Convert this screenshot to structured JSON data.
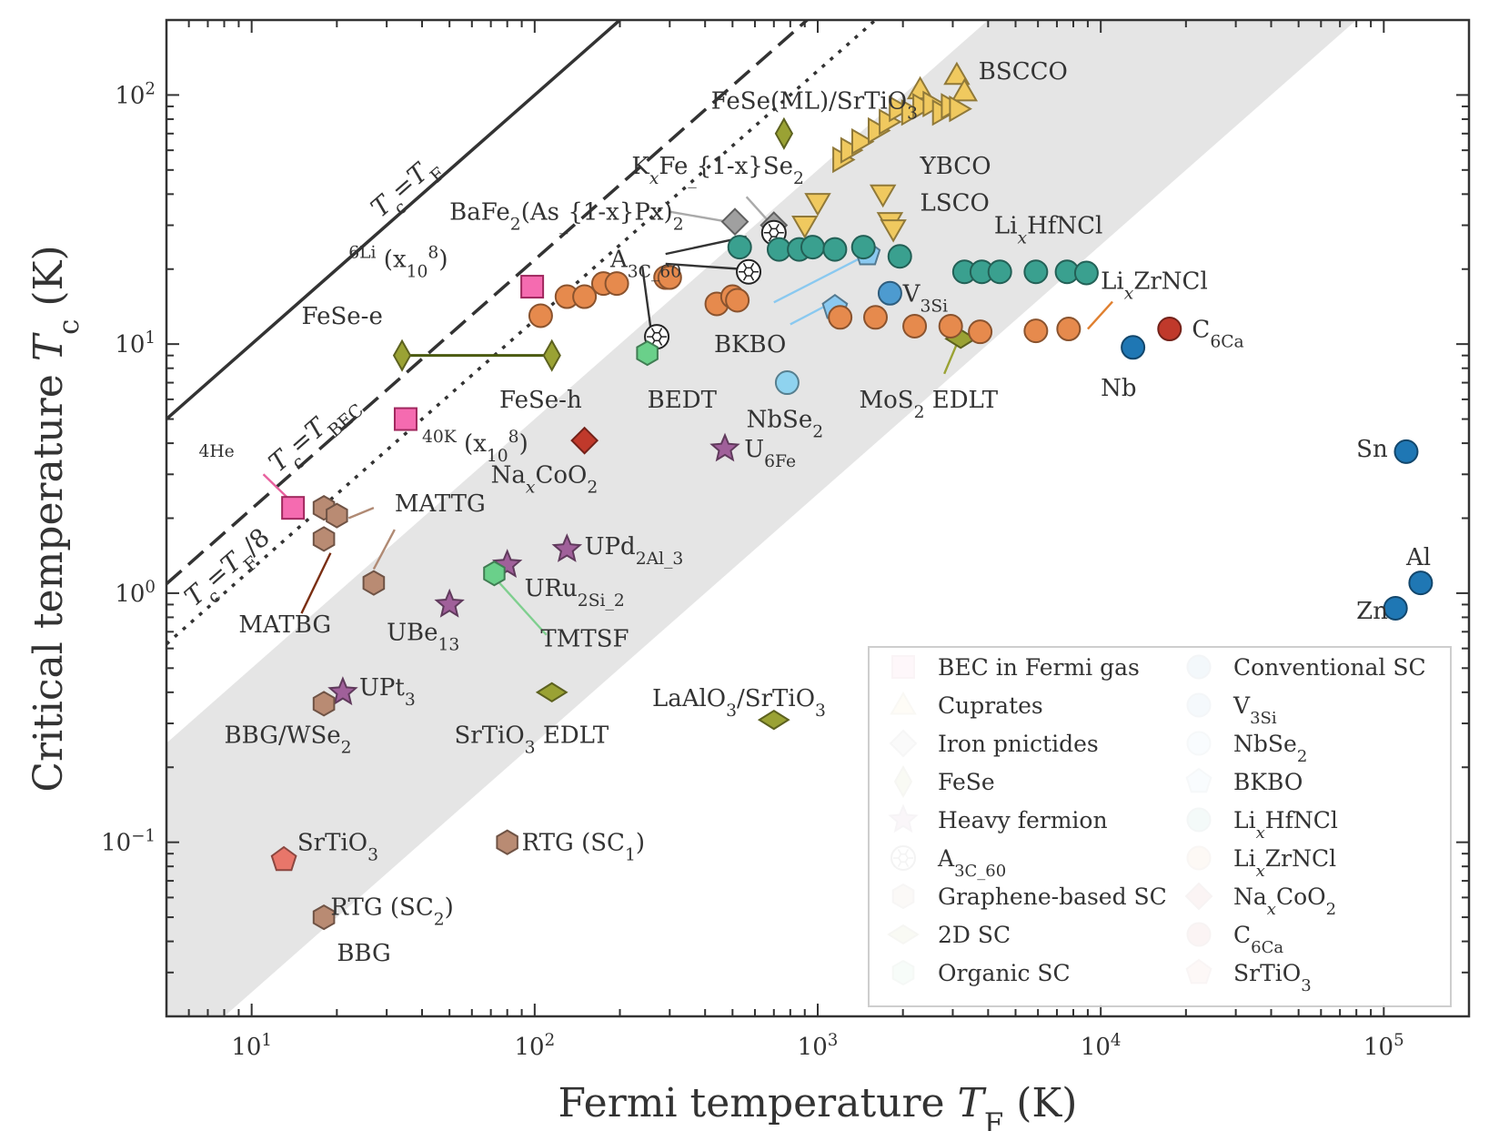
{
  "chart_data": {
    "type": "scatter",
    "xscale": "log",
    "yscale": "log",
    "xlim": [
      5,
      200000
    ],
    "ylim": [
      0.02,
      200
    ],
    "xlabel": "Fermi temperature T_F (K)",
    "ylabel": "Critical temperature T_c (K)",
    "x_ticks": [
      10,
      100,
      1000,
      10000,
      100000
    ],
    "x_tick_labels": [
      "10^1",
      "10^2",
      "10^3",
      "10^4",
      "10^5"
    ],
    "y_ticks": [
      0.1,
      1,
      10,
      100
    ],
    "y_tick_labels": [
      "10^-1",
      "10^0",
      "10^1",
      "10^2"
    ],
    "grid": false,
    "legend_position": "lower-right",
    "reference_lines": [
      {
        "name": "Tc=TF",
        "ratio": 1,
        "style": "solid"
      },
      {
        "name": "Tc=TBEC",
        "ratio": 0.218,
        "style": "dashed"
      },
      {
        "name": "Tc=TF/8",
        "ratio": 0.125,
        "style": "dotted"
      }
    ],
    "shaded_band": {
      "ratio_low": 0.0025,
      "ratio_high": 0.05
    },
    "series": [
      {
        "name": "BEC in Fermi gas",
        "marker": "square",
        "color": "#f56bb0",
        "x": [
          98,
          35,
          14
        ],
        "y": [
          17,
          5,
          2.2
        ]
      },
      {
        "name": "Cuprates",
        "marker": "triangle-up",
        "color": "#f0c95f",
        "x": [
          2300,
          3100,
          3300
        ],
        "y": [
          105,
          120,
          103
        ]
      },
      {
        "name": "Cuprates (YBCO, right-pointing)",
        "marker": "triangle-right",
        "color": "#f0c95f",
        "x": [
          1200,
          1280,
          1400,
          1600,
          1750,
          1900,
          2100,
          2300,
          2500,
          2700,
          2900,
          3100
        ],
        "y": [
          55,
          60,
          65,
          72,
          78,
          88,
          85,
          90,
          92,
          85,
          90,
          88
        ]
      },
      {
        "name": "Cuprates (LSCO, down-pointing)",
        "marker": "triangle-down",
        "color": "#f0c95f",
        "x": [
          900,
          1000,
          1700,
          1800,
          1850
        ],
        "y": [
          30,
          37,
          40,
          31,
          29
        ]
      },
      {
        "name": "Iron pnictides",
        "marker": "diamond",
        "color": "#a0a0a0",
        "x": [
          510,
          700
        ],
        "y": [
          31,
          30
        ]
      },
      {
        "name": "FeSe",
        "marker": "thin-diamond",
        "color": "#9aa234",
        "x": [
          34,
          115,
          760
        ],
        "y": [
          9,
          9,
          70
        ]
      },
      {
        "name": "Heavy fermion",
        "marker": "star",
        "color": "#a0609a",
        "x": [
          470,
          130,
          80,
          50,
          21
        ],
        "y": [
          3.8,
          1.5,
          1.3,
          0.9,
          0.4
        ]
      },
      {
        "name": "A3C60",
        "marker": "buckyball",
        "color": "#ffffff",
        "x": [
          700,
          570,
          270
        ],
        "y": [
          28,
          19.5,
          10.7
        ]
      },
      {
        "name": "Graphene-based SC",
        "marker": "hexagon",
        "color": "#b98b73",
        "x": [
          18,
          20,
          18,
          27,
          18,
          18,
          80
        ],
        "y": [
          2.2,
          2.05,
          1.65,
          1.1,
          0.36,
          0.05,
          0.1
        ]
      },
      {
        "name": "2D SC",
        "marker": "diamond-wide",
        "color": "#9aa234",
        "x": [
          3200,
          115,
          700
        ],
        "y": [
          10.5,
          0.4,
          0.31
        ]
      },
      {
        "name": "Organic SC",
        "marker": "hexagon",
        "color": "#6ad08a",
        "x": [
          250,
          72
        ],
        "y": [
          9.2,
          1.2
        ]
      },
      {
        "name": "Conventional SC",
        "marker": "circle",
        "color": "#1f77b4",
        "x": [
          13000,
          120000,
          135000,
          110000
        ],
        "y": [
          9.7,
          3.7,
          1.1,
          0.87
        ]
      },
      {
        "name": "V3Si",
        "marker": "circle",
        "color": "#4d9bd0",
        "x": [
          1800
        ],
        "y": [
          16
        ]
      },
      {
        "name": "NbSe2",
        "marker": "circle",
        "color": "#8fd3ef",
        "x": [
          780
        ],
        "y": [
          7
        ]
      },
      {
        "name": "BKBO",
        "marker": "pentagon",
        "color": "#8ac9f0",
        "x": [
          1500,
          1150
        ],
        "y": [
          23,
          14
        ]
      },
      {
        "name": "LixHfNCl",
        "marker": "circle",
        "color": "#3aa08f",
        "x": [
          530,
          730,
          860,
          960,
          1150,
          1450,
          1950,
          3300,
          3800,
          4400,
          5900,
          7600,
          8900
        ],
        "y": [
          24.5,
          24,
          24,
          24.5,
          24,
          24.5,
          22.5,
          19.5,
          19.5,
          19.5,
          19.5,
          19.5,
          19.3
        ]
      },
      {
        "name": "LixZrNCl",
        "marker": "circle",
        "color": "#e68a4d",
        "x": [
          105,
          130,
          150,
          175,
          195,
          290,
          300,
          440,
          500,
          520,
          1200,
          1600,
          2200,
          2950,
          3750,
          5900,
          7700
        ],
        "y": [
          13,
          15.5,
          15.5,
          17.5,
          17.5,
          18.5,
          18.5,
          14.5,
          15.5,
          15,
          12.8,
          12.8,
          11.8,
          11.8,
          11.2,
          11.3,
          11.5
        ]
      },
      {
        "name": "NaxCoO2",
        "marker": "diamond",
        "color": "#c0392b",
        "x": [
          150
        ],
        "y": [
          4.1
        ]
      },
      {
        "name": "C6Ca",
        "marker": "circle",
        "color": "#c0392b",
        "x": [
          17500
        ],
        "y": [
          11.5
        ]
      },
      {
        "name": "SrTiO3",
        "marker": "pentagon",
        "color": "#e8766a",
        "x": [
          13
        ],
        "y": [
          0.085
        ]
      }
    ],
    "annotations": [
      {
        "text": "BSCCO",
        "x": 3700,
        "y": 125
      },
      {
        "text": "FeSe(ML)/SrTiO3",
        "x": 420,
        "y": 95
      },
      {
        "text": "YBCO",
        "x": 2300,
        "y": 52
      },
      {
        "text": "KxFe1-xSe2",
        "x": 220,
        "y": 52
      },
      {
        "text": "BaFe2(As1-xPx)2",
        "x": 50,
        "y": 34
      },
      {
        "text": "LSCO",
        "x": 2300,
        "y": 37
      },
      {
        "text": "A3C60",
        "x": 185,
        "y": 22
      },
      {
        "text": "LixHfNCl",
        "x": 4200,
        "y": 30
      },
      {
        "text": "6Li (x10^8)",
        "x": 22,
        "y": 22
      },
      {
        "text": "LixZrNCl",
        "x": 10000,
        "y": 18
      },
      {
        "text": "V3Si",
        "x": 2000,
        "y": 16
      },
      {
        "text": "FeSe-e",
        "x": 15,
        "y": 13
      },
      {
        "text": "C6Ca",
        "x": 21000,
        "y": 11.5
      },
      {
        "text": "BKBO",
        "x": 430,
        "y": 10
      },
      {
        "text": "Nb",
        "x": 10000,
        "y": 6.7
      },
      {
        "text": "FeSe-h",
        "x": 75,
        "y": 6
      },
      {
        "text": "BEDT",
        "x": 250,
        "y": 6
      },
      {
        "text": "MoS2 EDLT",
        "x": 1400,
        "y": 6
      },
      {
        "text": "NbSe2",
        "x": 560,
        "y": 5
      },
      {
        "text": "40K (x10^8)",
        "x": 40,
        "y": 4
      },
      {
        "text": "4He",
        "x": 6.5,
        "y": 3.5
      },
      {
        "text": "NaxCoO2",
        "x": 70,
        "y": 3
      },
      {
        "text": "U6Fe",
        "x": 550,
        "y": 3.8
      },
      {
        "text": "Sn",
        "x": 80000,
        "y": 3.8
      },
      {
        "text": "MATTG",
        "x": 32,
        "y": 2.3
      },
      {
        "text": "UPd2Al3",
        "x": 150,
        "y": 1.55
      },
      {
        "text": "Al",
        "x": 120000,
        "y": 1.4
      },
      {
        "text": "URu2Si2",
        "x": 92,
        "y": 1.05
      },
      {
        "text": "Zn",
        "x": 80000,
        "y": 0.85
      },
      {
        "text": "MATBG",
        "x": 9,
        "y": 0.75
      },
      {
        "text": "UBe13",
        "x": 30,
        "y": 0.7
      },
      {
        "text": "TMTSF",
        "x": 105,
        "y": 0.66
      },
      {
        "text": "UPt3",
        "x": 24,
        "y": 0.42
      },
      {
        "text": "LaAlO3/SrTiO3",
        "x": 260,
        "y": 0.38
      },
      {
        "text": "BBG/WSe2",
        "x": 8,
        "y": 0.27
      },
      {
        "text": "SrTiO3 EDLT",
        "x": 52,
        "y": 0.27
      },
      {
        "text": "SrTiO3",
        "x": 14.5,
        "y": 0.1
      },
      {
        "text": "RTG (SC1)",
        "x": 90,
        "y": 0.1
      },
      {
        "text": "RTG (SC2)",
        "x": 19,
        "y": 0.055
      },
      {
        "text": "BBG",
        "x": 20,
        "y": 0.036
      }
    ]
  }
}
